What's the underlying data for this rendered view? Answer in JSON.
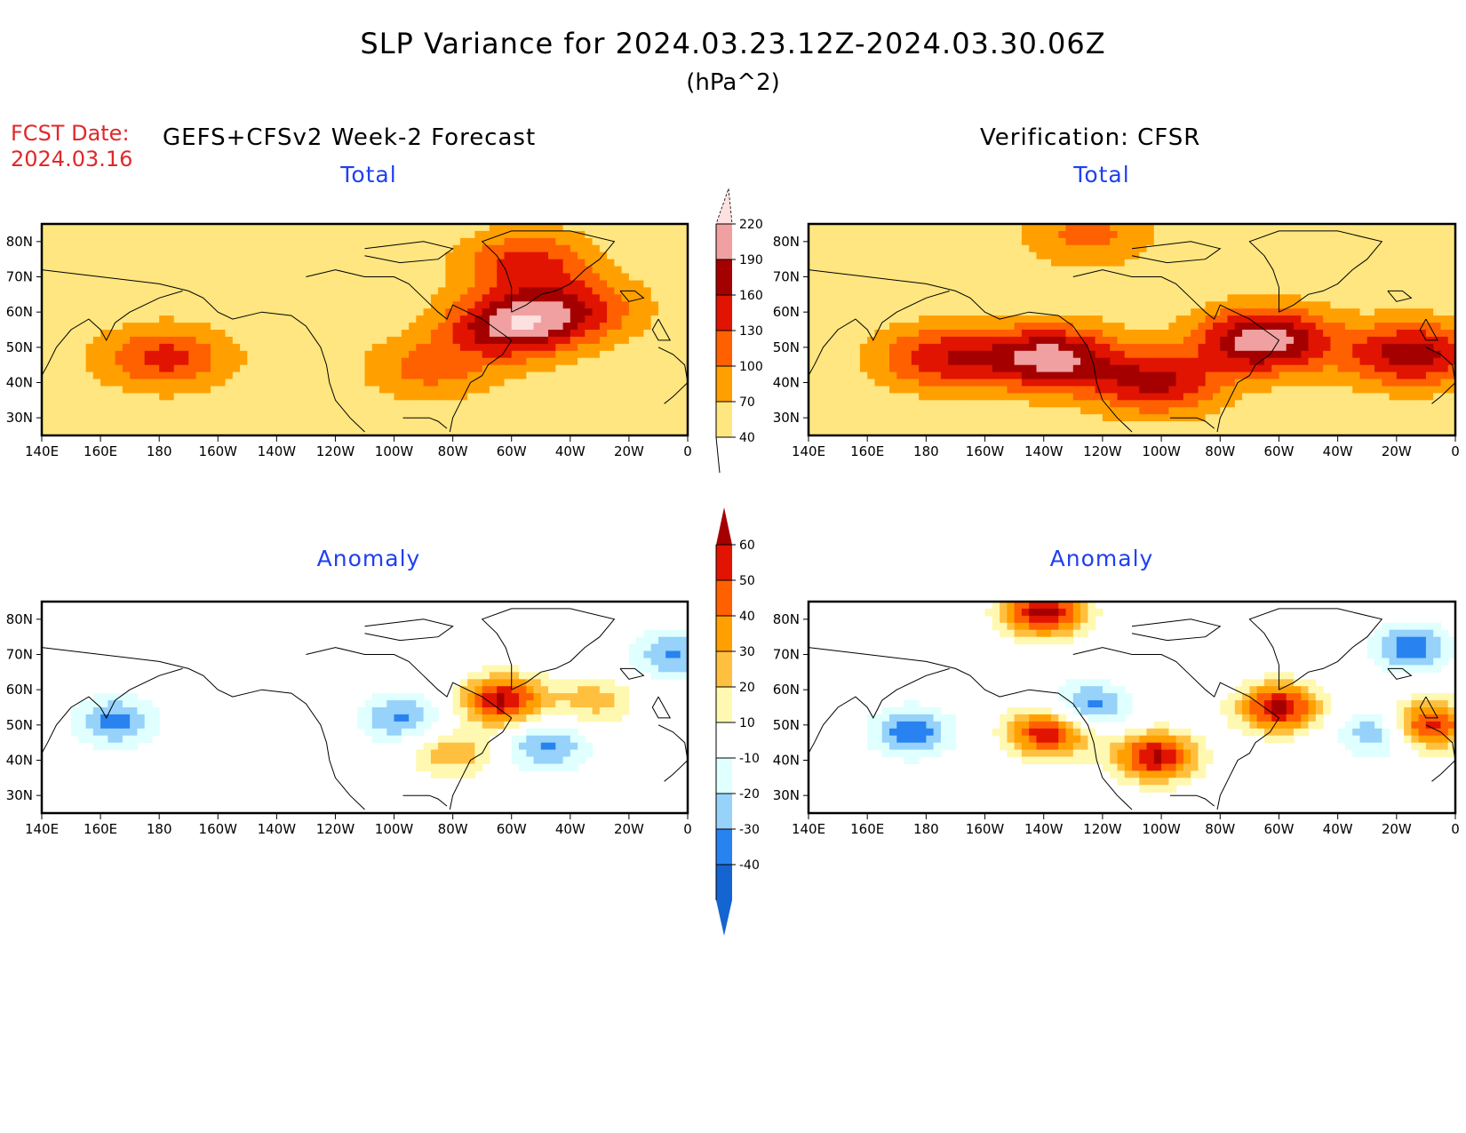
{
  "header": {
    "title": "SLP Variance for 2024.03.23.12Z-2024.03.30.06Z",
    "units": "(hPa^2)",
    "fcst_label": "FCST Date:",
    "fcst_date": "2024.03.16",
    "left_header": "GEFS+CFSv2 Week-2 Forecast",
    "right_header": "Verification: CFSR"
  },
  "colors": {
    "title_red": "#e0282a",
    "panel_title_blue": "#2040f0"
  },
  "chart_data": [
    {
      "type": "heatmap",
      "name": "forecast-total",
      "title": "Total",
      "x_ticks": [
        "140E",
        "160E",
        "180",
        "160W",
        "140W",
        "120W",
        "100W",
        "80W",
        "60W",
        "40W",
        "20W",
        "0"
      ],
      "y_ticks": [
        "80N",
        "70N",
        "60N",
        "50N",
        "40N",
        "30N"
      ],
      "xlim": [
        140,
        360
      ],
      "ylim": [
        25,
        85
      ],
      "blobs": [
        {
          "lon": 182,
          "lat": 47,
          "value": 140
        },
        {
          "lon": 300,
          "lat": 56,
          "value": 195
        },
        {
          "lon": 305,
          "lat": 74,
          "value": 140
        },
        {
          "lon": 322,
          "lat": 61,
          "value": 135
        },
        {
          "lon": 272,
          "lat": 44,
          "value": 110
        }
      ]
    },
    {
      "type": "heatmap",
      "name": "verification-total",
      "title": "Total",
      "x_ticks": [
        "140E",
        "160E",
        "180",
        "160W",
        "140W",
        "120W",
        "100W",
        "80W",
        "60W",
        "40W",
        "20W",
        "0"
      ],
      "y_ticks": [
        "80N",
        "70N",
        "60N",
        "50N",
        "40N",
        "30N"
      ],
      "xlim": [
        140,
        360
      ],
      "ylim": [
        25,
        85
      ],
      "blobs": [
        {
          "lon": 185,
          "lat": 47,
          "value": 150
        },
        {
          "lon": 222,
          "lat": 47,
          "value": 200
        },
        {
          "lon": 258,
          "lat": 40,
          "value": 165
        },
        {
          "lon": 295,
          "lat": 52,
          "value": 215
        },
        {
          "lon": 345,
          "lat": 48,
          "value": 180
        },
        {
          "lon": 235,
          "lat": 82,
          "value": 110
        }
      ]
    },
    {
      "type": "heatmap",
      "name": "forecast-anomaly",
      "title": "Anomaly",
      "x_ticks": [
        "140E",
        "160E",
        "180",
        "160W",
        "140W",
        "120W",
        "100W",
        "80W",
        "60W",
        "40W",
        "20W",
        "0"
      ],
      "y_ticks": [
        "80N",
        "70N",
        "60N",
        "50N",
        "40N",
        "30N"
      ],
      "xlim": [
        140,
        360
      ],
      "ylim": [
        25,
        85
      ],
      "blobs": [
        {
          "lon": 165,
          "lat": 51,
          "value": -35
        },
        {
          "lon": 262,
          "lat": 52,
          "value": -32
        },
        {
          "lon": 312,
          "lat": 44,
          "value": -33
        },
        {
          "lon": 297,
          "lat": 57,
          "value": 62
        },
        {
          "lon": 280,
          "lat": 42,
          "value": 28
        },
        {
          "lon": 328,
          "lat": 57,
          "value": 25
        },
        {
          "lon": 355,
          "lat": 70,
          "value": -32
        }
      ]
    },
    {
      "type": "heatmap",
      "name": "verification-anomaly",
      "title": "Anomaly",
      "x_ticks": [
        "140E",
        "160E",
        "180",
        "160W",
        "140W",
        "120W",
        "100W",
        "80W",
        "60W",
        "40W",
        "20W",
        "0"
      ],
      "y_ticks": [
        "80N",
        "70N",
        "60N",
        "50N",
        "40N",
        "30N"
      ],
      "xlim": [
        140,
        360
      ],
      "ylim": [
        25,
        85
      ],
      "blobs": [
        {
          "lon": 175,
          "lat": 48,
          "value": -38
        },
        {
          "lon": 235,
          "lat": 55,
          "value": -38
        },
        {
          "lon": 220,
          "lat": 82,
          "value": 65
        },
        {
          "lon": 222,
          "lat": 48,
          "value": 62
        },
        {
          "lon": 258,
          "lat": 41,
          "value": 62
        },
        {
          "lon": 300,
          "lat": 55,
          "value": 62
        },
        {
          "lon": 350,
          "lat": 50,
          "value": 62
        },
        {
          "lon": 335,
          "lat": 48,
          "value": -36
        },
        {
          "lon": 345,
          "lat": 72,
          "value": -36
        }
      ]
    }
  ],
  "colorbars": {
    "total": {
      "levels": [
        "40",
        "70",
        "100",
        "130",
        "160",
        "190",
        "220"
      ],
      "colors": [
        "#ffe680",
        "#ffa000",
        "#ff6000",
        "#e01400",
        "#a50000",
        "#f0a0a0",
        "#fde0e0"
      ]
    },
    "anomaly": {
      "levels": [
        "60",
        "50",
        "40",
        "30",
        "20",
        "10",
        "-10",
        "-20",
        "-30",
        "-40"
      ],
      "colors": [
        "#a50000",
        "#e01400",
        "#ff6000",
        "#ffa000",
        "#ffc040",
        "#fff8b0",
        "#ffffff",
        "#e0ffff",
        "#96d2fa",
        "#2882f0",
        "#1464d2"
      ]
    }
  }
}
